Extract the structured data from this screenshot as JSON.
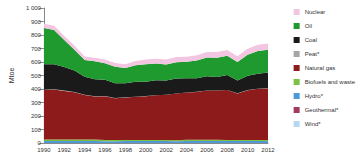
{
  "chart_data": {
    "type": "area",
    "stacked": true,
    "grid": false,
    "legend": "right",
    "y_label": "Mtoe",
    "categories": [
      "1990",
      null,
      "1992",
      null,
      "1994",
      null,
      "1996",
      null,
      "1998",
      null,
      "2000",
      null,
      "2002",
      null,
      "2004",
      null,
      "2006",
      null,
      "2008",
      null,
      "2010",
      null,
      "2012"
    ],
    "ylim": [
      0,
      1000
    ],
    "yticks": [
      0,
      100,
      200,
      300,
      400,
      500,
      600,
      700,
      800,
      900,
      {
        "value": 1000,
        "label": "1 000"
      }
    ],
    "series": [
      {
        "name": "Wind*",
        "color": "#b4d8f0",
        "values": [
          0,
          0,
          0,
          0,
          0,
          0,
          0,
          0,
          0,
          0,
          0,
          0,
          0,
          0,
          0,
          0,
          0,
          0,
          0,
          0,
          0,
          0,
          0.1
        ]
      },
      {
        "name": "Geothermal*",
        "color": "#a23b5c",
        "values": [
          0.1,
          0.1,
          0.1,
          0.1,
          0.1,
          0.1,
          0.1,
          0.1,
          0.1,
          0.1,
          0.1,
          0.1,
          0.1,
          0.2,
          0.2,
          0.3,
          0.3,
          0.3,
          0.3,
          0.3,
          0.3,
          0.3,
          0.3
        ]
      },
      {
        "name": "Hydro*",
        "color": "#4f9ad6",
        "values": [
          14,
          14,
          15,
          15,
          15,
          15,
          13,
          13,
          14,
          14,
          14,
          15,
          14,
          13,
          15,
          15,
          15,
          15,
          14,
          15,
          14,
          14,
          14
        ]
      },
      {
        "name": "Biofuels and waste",
        "color": "#7cc242",
        "values": [
          12,
          12,
          11,
          11,
          10,
          10,
          9,
          9,
          8,
          8,
          8,
          8,
          8,
          8,
          8,
          8,
          8,
          8,
          8,
          7,
          7,
          7,
          7
        ]
      },
      {
        "name": "Natural gas",
        "color": "#8e1b1b",
        "values": [
          366,
          370,
          360,
          350,
          330,
          320,
          325,
          310,
          315,
          320,
          325,
          330,
          335,
          345,
          350,
          355,
          365,
          365,
          370,
          345,
          370,
          380,
          385
        ]
      },
      {
        "name": "Peat*",
        "color": "#a6a6a6",
        "values": [
          2,
          2,
          2,
          1.5,
          1.5,
          1.5,
          1,
          1,
          1,
          1,
          1,
          1,
          1,
          1,
          1,
          1,
          1,
          1,
          1,
          1,
          1,
          1,
          1
        ]
      },
      {
        "name": "Coal",
        "color": "#1a1a1a",
        "values": [
          190,
          185,
          175,
          160,
          135,
          125,
          120,
          110,
          105,
          110,
          105,
          110,
          105,
          110,
          105,
          100,
          105,
          100,
          110,
          95,
          105,
          110,
          115
        ]
      },
      {
        "name": "Oil",
        "color": "#1e9a2e",
        "values": [
          268,
          254,
          199,
          153,
          124,
          134,
          122,
          122,
          113,
          123,
          131,
          124,
          118,
          121,
          122,
          131,
          139,
          143,
          143,
          137,
          156,
          170,
          169
        ]
      },
      {
        "name": "Nuclear",
        "color": "#f2c6e0",
        "values": [
          31,
          31,
          31,
          32,
          26,
          26,
          28,
          28,
          27,
          32,
          34,
          36,
          37,
          39,
          38,
          39,
          41,
          42,
          42,
          43,
          44,
          45,
          46
        ]
      }
    ]
  }
}
